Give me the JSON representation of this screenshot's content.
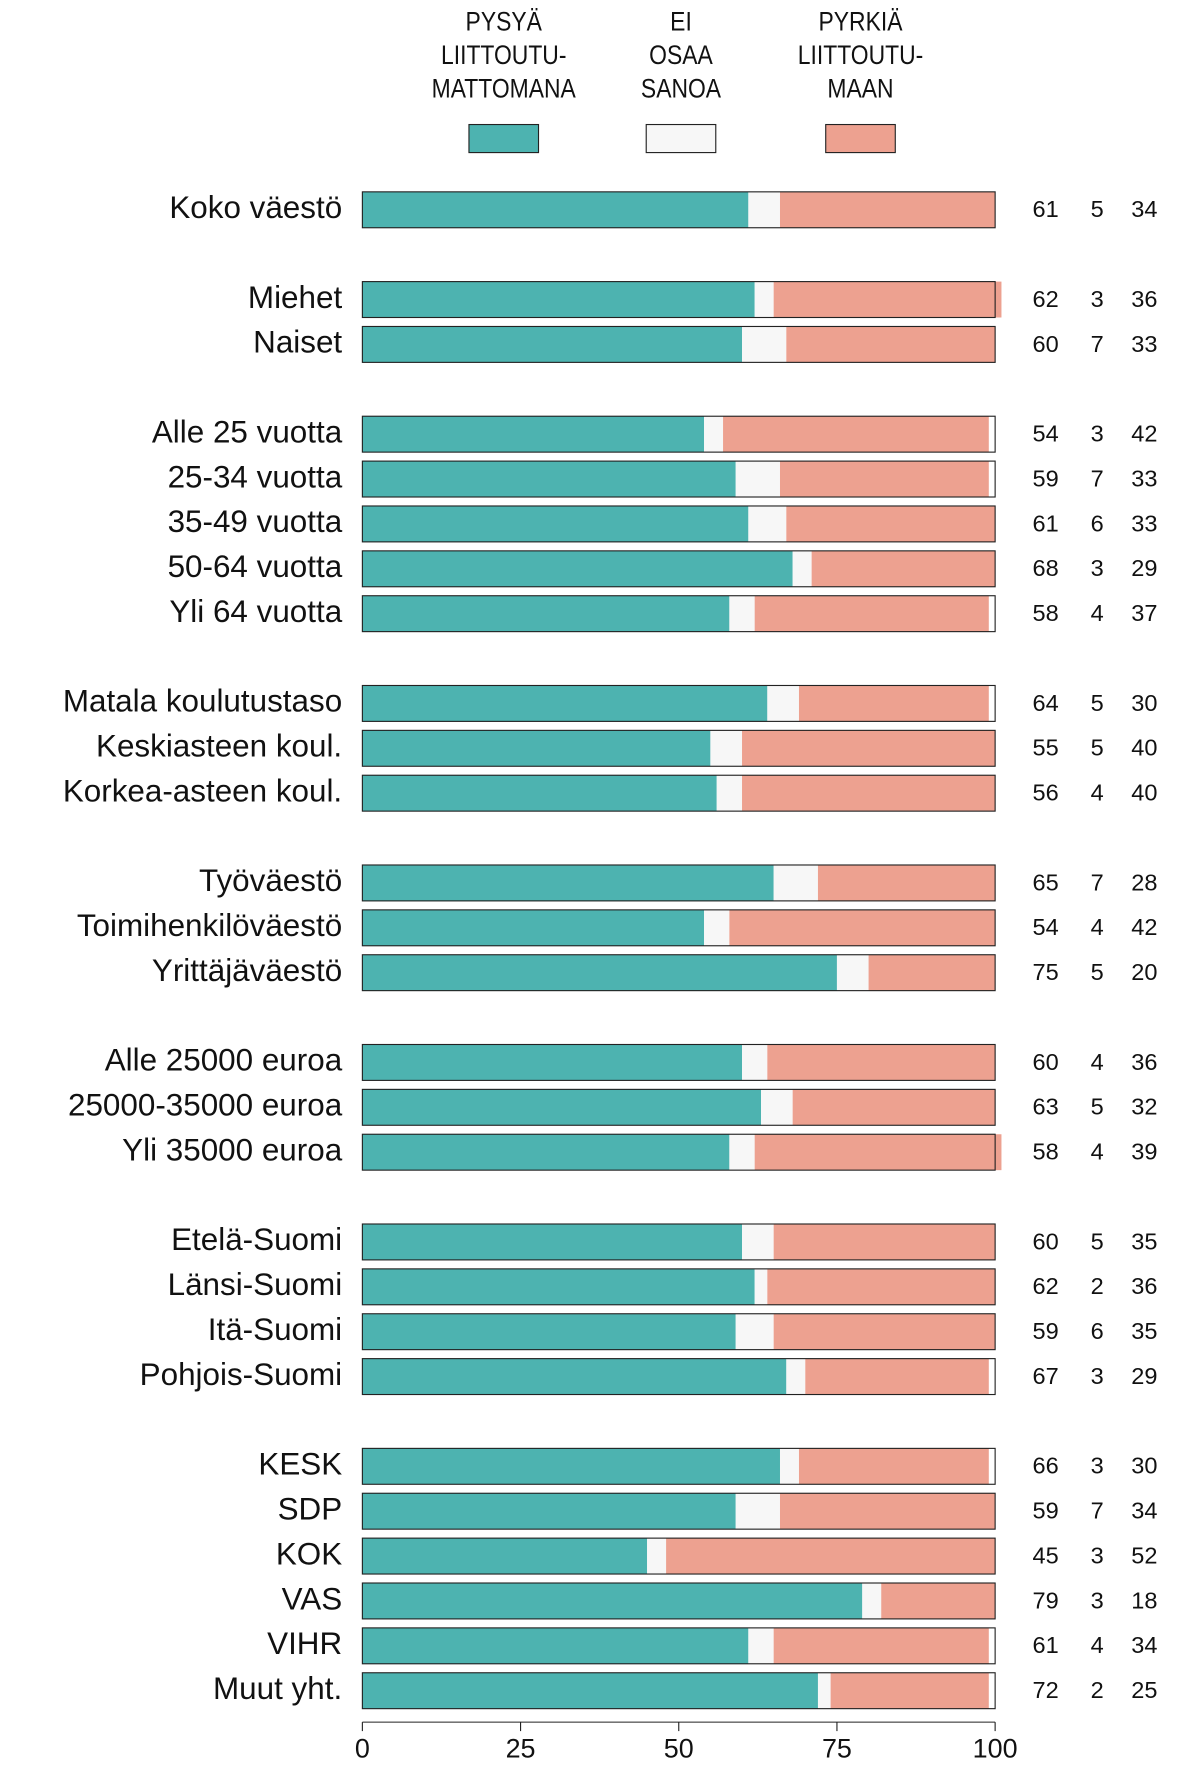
{
  "chart_data": {
    "type": "stacked_bar_horizontal",
    "categories": [
      "Koko väestö",
      null,
      "Miehet",
      "Naiset",
      null,
      "Alle 25 vuotta",
      "25-34 vuotta",
      "35-49 vuotta",
      "50-64 vuotta",
      "Yli 64 vuotta",
      null,
      "Matala koulutustaso",
      "Keskiasteen koul.",
      "Korkea-asteen koul.",
      null,
      "Työväestö",
      "Toimihenkilöväestö",
      "Yrittäjäväestö",
      null,
      "Alle 25000 euroa",
      "25000-35000 euroa",
      "Yli 35000 euroa",
      null,
      "Etelä-Suomi",
      "Länsi-Suomi",
      "Itä-Suomi",
      "Pohjois-Suomi",
      null,
      "KESK",
      "SDP",
      "KOK",
      "VAS",
      "VIHR",
      "Muut yht."
    ],
    "series": [
      {
        "name": "PYSYÄ\nLIITTOUTU-\nMATTOMANA",
        "color": "#4db3b0",
        "values": [
          61,
          null,
          62,
          60,
          null,
          54,
          59,
          61,
          68,
          58,
          null,
          64,
          55,
          56,
          null,
          65,
          54,
          75,
          null,
          60,
          63,
          58,
          null,
          60,
          62,
          59,
          67,
          null,
          66,
          59,
          45,
          79,
          61,
          72
        ]
      },
      {
        "name": "EI\nOSAA\nSANOA",
        "color": "#f7f7f7",
        "values": [
          5,
          null,
          3,
          7,
          null,
          3,
          7,
          6,
          3,
          4,
          null,
          5,
          5,
          4,
          null,
          7,
          4,
          5,
          null,
          4,
          5,
          4,
          null,
          5,
          2,
          6,
          3,
          null,
          3,
          7,
          3,
          3,
          4,
          2
        ]
      },
      {
        "name": "PYRKIÄ\nLIITTOUTU-\nMAAN",
        "color": "#eda190",
        "values": [
          34,
          null,
          36,
          33,
          null,
          42,
          33,
          33,
          29,
          37,
          null,
          30,
          40,
          40,
          null,
          28,
          42,
          20,
          null,
          36,
          32,
          39,
          null,
          35,
          36,
          35,
          29,
          null,
          30,
          34,
          52,
          18,
          34,
          25
        ]
      }
    ],
    "xlim": [
      0,
      100
    ],
    "xticks": [
      0,
      25,
      50,
      75,
      100
    ]
  }
}
